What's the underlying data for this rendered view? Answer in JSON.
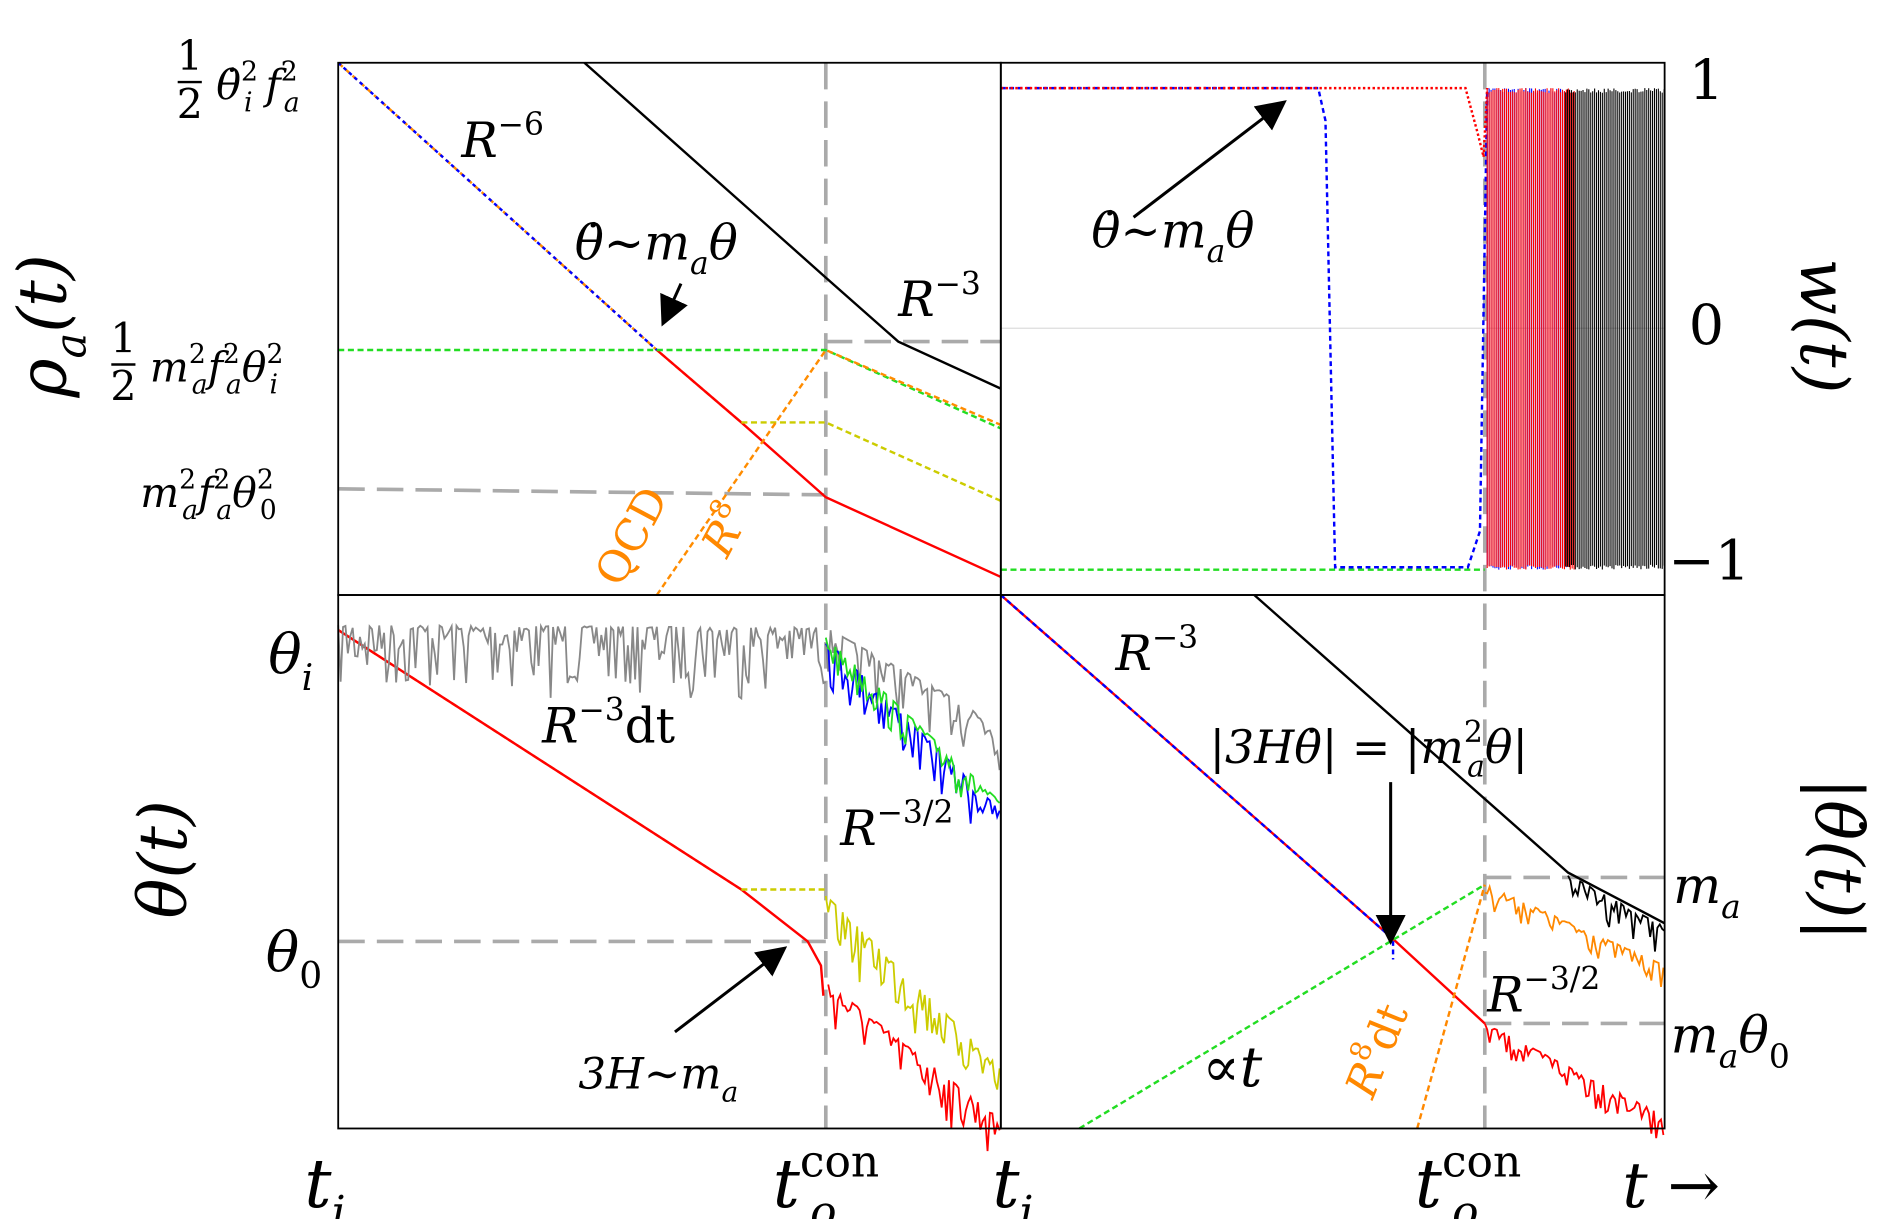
{
  "labels": {
    "rho_axis": [
      [
        "ρ"
      ],
      [
        "a",
        "sub"
      ],
      [
        "(t)"
      ]
    ],
    "tick_rho_i": {
      "fraction": [
        "1",
        "2"
      ],
      "parts": [
        [
          "θ̇"
        ],
        [
          "2",
          "sup"
        ],
        [
          "i",
          "sub"
        ],
        [
          " f"
        ],
        [
          "2",
          "sup"
        ],
        [
          "a",
          "sub"
        ]
      ]
    },
    "tick_rho_m": {
      "fraction": [
        "1",
        "2"
      ],
      "parts": [
        [
          "m"
        ],
        [
          "2",
          "sup"
        ],
        [
          "a",
          "sub"
        ],
        [
          "f"
        ],
        [
          "2",
          "sup"
        ],
        [
          "a",
          "sub"
        ],
        [
          "θ"
        ],
        [
          "2",
          "sup"
        ],
        [
          "i",
          "sub"
        ]
      ]
    },
    "tick_rho_0": {
      "parts": [
        [
          "m"
        ],
        [
          "2",
          "sup"
        ],
        [
          "a",
          "sub"
        ],
        [
          "f"
        ],
        [
          "2",
          "sup"
        ],
        [
          "a",
          "sub"
        ],
        [
          "θ"
        ],
        [
          "2",
          "sup"
        ],
        [
          "0",
          "sub"
        ]
      ]
    },
    "tl_r6": [
      [
        "R"
      ],
      [
        "−6",
        "sup"
      ]
    ],
    "tl_osc": [
      [
        "θ̇∼m"
      ],
      [
        "a",
        "sub"
      ],
      [
        "θ"
      ]
    ],
    "tl_r3": [
      [
        "R"
      ],
      [
        "−3",
        "sup"
      ]
    ],
    "tl_qcd": [
      [
        "QCD"
      ]
    ],
    "tl_r8": [
      [
        "R"
      ],
      [
        "8",
        "sup"
      ]
    ],
    "tr_1": [
      [
        "1"
      ]
    ],
    "tr_0": [
      [
        "0"
      ]
    ],
    "tr_m1": [
      [
        "−1"
      ]
    ],
    "w_axis": [
      [
        "w(t)"
      ]
    ],
    "tr_osc": [
      [
        "θ̇∼m"
      ],
      [
        "a",
        "sub"
      ],
      [
        "θ"
      ]
    ],
    "bl_ti": [
      [
        "θ"
      ],
      [
        "i",
        "sub"
      ]
    ],
    "bl_t0": [
      [
        "θ"
      ],
      [
        "0",
        "sub"
      ]
    ],
    "theta_axis": [
      [
        "θ(t)"
      ]
    ],
    "bl_r3dt": [
      [
        "R"
      ],
      [
        "−3",
        "sup"
      ],
      [
        "dt"
      ]
    ],
    "bl_r32": [
      [
        "R"
      ],
      [
        "−3/2",
        "sup"
      ]
    ],
    "bl_3h": [
      [
        "3H∼m"
      ],
      [
        "a",
        "sub"
      ]
    ],
    "br_r3": [
      [
        "R"
      ],
      [
        "−3",
        "sup"
      ]
    ],
    "br_eq": [
      [
        "|3Hθ̇| = |m"
      ],
      [
        "2",
        "sup"
      ],
      [
        "a",
        "sub"
      ],
      [
        "θ|"
      ]
    ],
    "br_t": [
      [
        "∝t"
      ]
    ],
    "br_r8dt": [
      [
        "R"
      ],
      [
        "8",
        "sup"
      ],
      [
        "dt"
      ]
    ],
    "br_r32": [
      [
        "R"
      ],
      [
        "−3/2",
        "sup"
      ]
    ],
    "br_ma": [
      [
        "m"
      ],
      [
        "a",
        "sub"
      ]
    ],
    "br_mat0": [
      [
        "m"
      ],
      [
        "a",
        "sub"
      ],
      [
        "θ"
      ],
      [
        "0",
        "sub"
      ]
    ],
    "thetadot_axis": [
      [
        "|θ̇(t)|"
      ]
    ],
    "x_ti_left": [
      [
        "t"
      ],
      [
        "i",
        "sub"
      ]
    ],
    "x_tcon_left": [
      [
        "t"
      ],
      [
        "con",
        "sup"
      ],
      [
        "o",
        "sub"
      ]
    ],
    "x_ti_right": [
      [
        "t"
      ],
      [
        "i",
        "sub"
      ]
    ],
    "x_tcon_right": [
      [
        "t"
      ],
      [
        "con",
        "sup"
      ],
      [
        "o",
        "sub"
      ]
    ],
    "x_t": [
      [
        "t →"
      ]
    ]
  }
}
